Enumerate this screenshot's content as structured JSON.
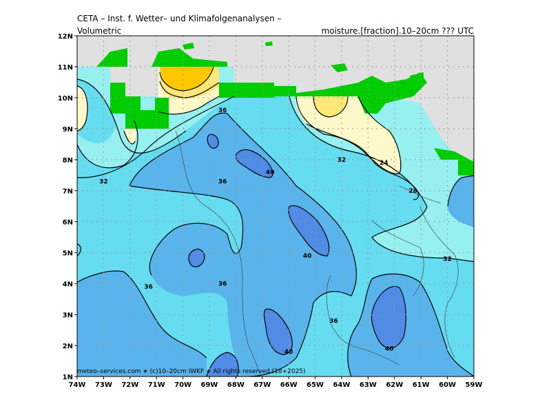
{
  "header": {
    "title": "CETA – Inst. f. Wetter– und Klimafolgenanalysen –",
    "subtitle_left": "Volumetric",
    "subtitle_right": "moisture.[fraction].10–20cm ??? UTC"
  },
  "footer": {
    "credit": "meteo–services.com ∗ (c)10–20cm IWKF ∗ All rights reserved (18+2025)"
  },
  "map": {
    "x_ticks": [
      "74W",
      "73W",
      "72W",
      "71W",
      "70W",
      "69W",
      "68W",
      "67W",
      "66W",
      "65W",
      "64W",
      "63W",
      "62W",
      "61W",
      "60W",
      "59W"
    ],
    "y_ticks": [
      "1N",
      "2N",
      "3N",
      "4N",
      "5N",
      "6N",
      "7N",
      "8N",
      "9N",
      "10N",
      "11N",
      "12N"
    ],
    "lon_range": [
      -74,
      -59
    ],
    "lat_range": [
      1,
      12
    ],
    "contour_labels": [
      {
        "text": "36",
        "lon": -68.5,
        "lat": 9.6
      },
      {
        "text": "32",
        "lon": -73.0,
        "lat": 7.3
      },
      {
        "text": "36",
        "lon": -68.5,
        "lat": 7.3
      },
      {
        "text": "40",
        "lon": -66.7,
        "lat": 7.6
      },
      {
        "text": "32",
        "lon": -64.0,
        "lat": 8.0
      },
      {
        "text": "24",
        "lon": -62.4,
        "lat": 7.9
      },
      {
        "text": "28",
        "lon": -61.3,
        "lat": 7.0
      },
      {
        "text": "40",
        "lon": -65.3,
        "lat": 4.9
      },
      {
        "text": "32",
        "lon": -60.0,
        "lat": 4.8
      },
      {
        "text": "36",
        "lon": -71.3,
        "lat": 3.9
      },
      {
        "text": "36",
        "lon": -68.5,
        "lat": 4.0
      },
      {
        "text": "36",
        "lon": -64.3,
        "lat": 2.8
      },
      {
        "text": "40",
        "lon": -66.0,
        "lat": 1.8
      },
      {
        "text": "40",
        "lon": -62.2,
        "lat": 1.9
      }
    ],
    "colors": {
      "sea": "#e0e0e0",
      "land_green": "#00cc00",
      "lt20": "#ffc800",
      "20_24": "#ffe878",
      "24_28": "#fff8c8",
      "28_32": "#96f0f0",
      "32_36": "#66dcf0",
      "36_40": "#5ab4ec",
      "gt40": "#508ce6"
    }
  }
}
